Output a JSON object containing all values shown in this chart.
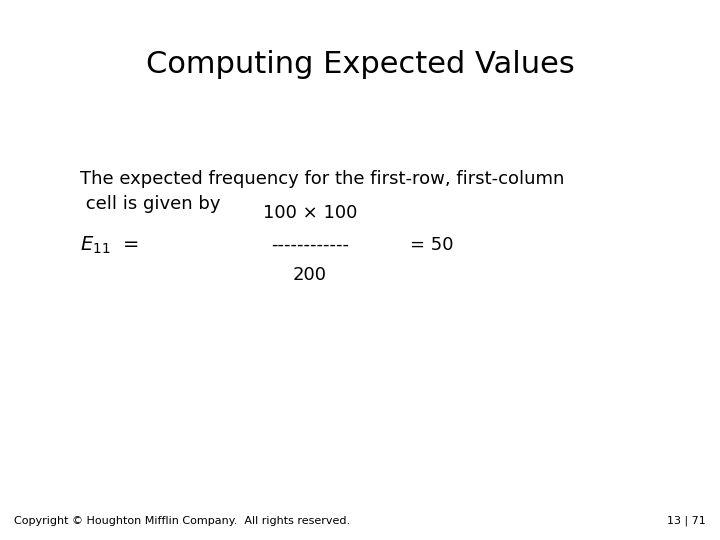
{
  "title": "Computing Expected Values",
  "title_fontsize": 22,
  "bg_color": "#ffffff",
  "text_color": "#000000",
  "body_text_line1": "The expected frequency for the first-row, first-column",
  "body_text_line2": " cell is given by",
  "numerator_text": "100 × 100",
  "dashes_text": "------------",
  "equals_50_text": "= 50",
  "denominator_text": "200",
  "E11_label": "$E_{11}$  =",
  "footer_left": "Copyright © Houghton Mifflin Company.  All rights reserved.",
  "footer_right": "13 | 71",
  "footer_fontsize": 8,
  "body_fontsize": 13,
  "formula_fontsize": 13,
  "E11_fontsize": 14
}
